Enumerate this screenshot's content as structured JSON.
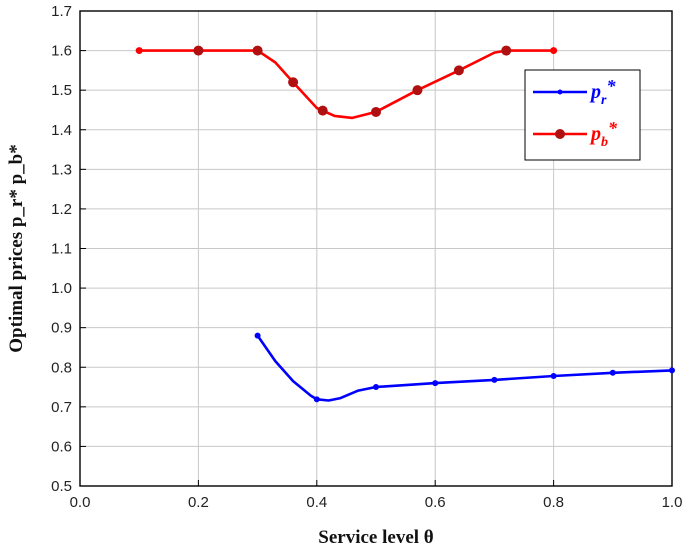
{
  "chart_data": {
    "type": "line",
    "title": "",
    "xlabel": "Service level θ",
    "ylabel": "Optimal prices  p_r* p_b*",
    "xlim": [
      0.0,
      1.0
    ],
    "ylim": [
      0.5,
      1.7
    ],
    "x_ticks": [
      "0.0",
      "0.2",
      "0.4",
      "0.6",
      "0.8",
      "1.0"
    ],
    "y_ticks": [
      "0.5",
      "0.6",
      "0.7",
      "0.8",
      "0.9",
      "1.0",
      "1.1",
      "1.2",
      "1.3",
      "1.4",
      "1.5",
      "1.6",
      "1.7"
    ],
    "grid": true,
    "legend_position": "top-right",
    "series": [
      {
        "name": "p_r*",
        "legend_base": "p",
        "legend_sub": "r",
        "legend_sup": "*",
        "color": "#0000ff",
        "marker": "small-dot",
        "x": [
          0.3,
          0.33,
          0.36,
          0.39,
          0.4,
          0.42,
          0.44,
          0.47,
          0.5,
          0.55,
          0.6,
          0.7,
          0.8,
          0.9,
          1.0
        ],
        "y": [
          0.88,
          0.815,
          0.765,
          0.728,
          0.719,
          0.716,
          0.722,
          0.741,
          0.75,
          0.755,
          0.76,
          0.768,
          0.778,
          0.786,
          0.792
        ],
        "marker_x": [
          0.3,
          0.4,
          0.5,
          0.6,
          0.7,
          0.8,
          0.9,
          1.0
        ]
      },
      {
        "name": "p_b*",
        "legend_base": "p",
        "legend_sub": "b",
        "legend_sup": "*",
        "color": "#ff0000",
        "marker": "dot",
        "x": [
          0.1,
          0.2,
          0.3,
          0.33,
          0.36,
          0.4,
          0.43,
          0.46,
          0.5,
          0.57,
          0.64,
          0.7,
          0.72,
          0.8
        ],
        "y": [
          1.6,
          1.6,
          1.6,
          1.57,
          1.52,
          1.455,
          1.435,
          1.43,
          1.445,
          1.5,
          1.55,
          1.595,
          1.6,
          1.6
        ],
        "marker_x": [
          0.1,
          0.2,
          0.3,
          0.36,
          0.41,
          0.5,
          0.57,
          0.64,
          0.72,
          0.8
        ]
      }
    ]
  }
}
